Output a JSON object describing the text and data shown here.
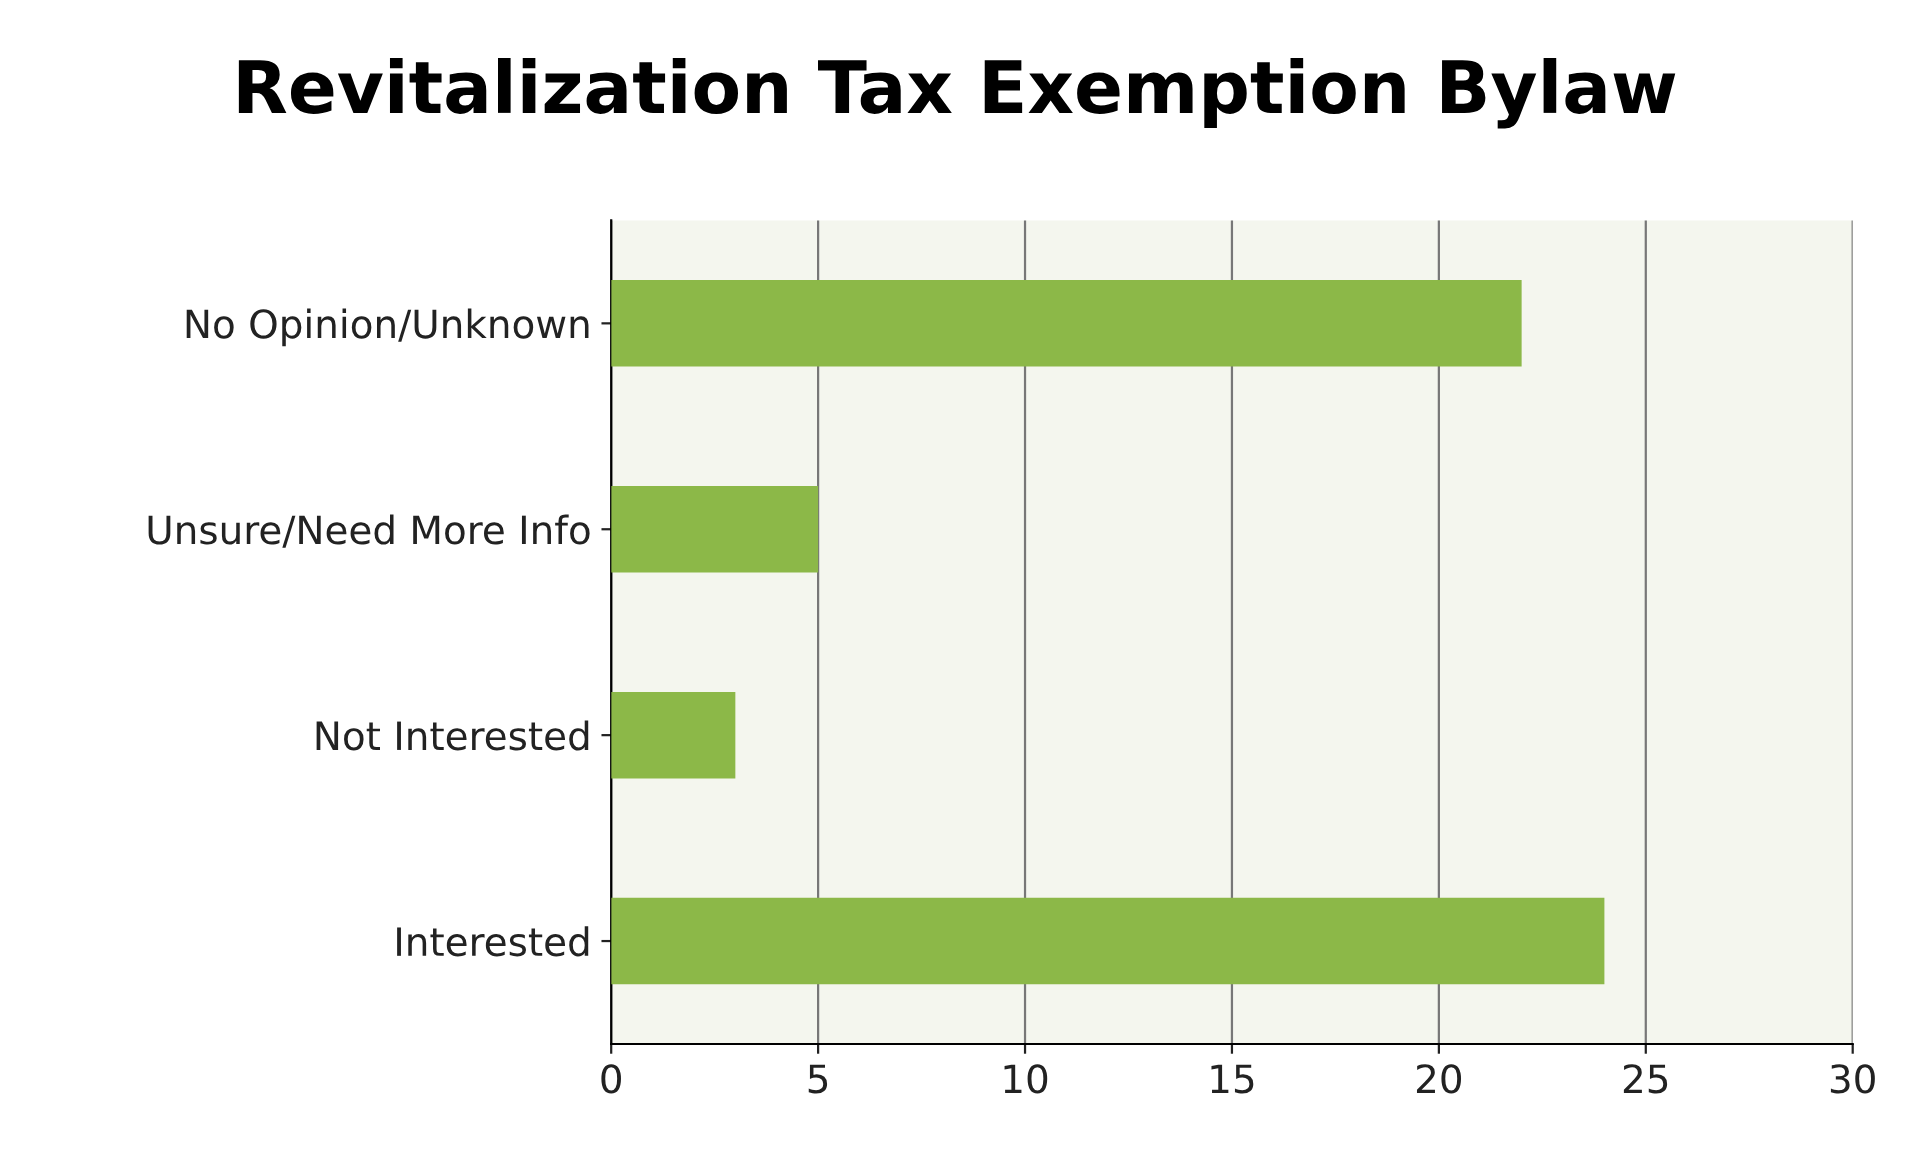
{
  "chart_data": {
    "type": "bar",
    "orientation": "horizontal",
    "title": "Revitalization Tax Exemption Bylaw",
    "categories": [
      "No Opinion/Unknown",
      "Unsure/Need More Info",
      "Not Interested",
      "Interested"
    ],
    "values": [
      22,
      5,
      3,
      24
    ],
    "color": "#8cb848",
    "xlim": [
      0,
      30
    ],
    "xticks": [
      0,
      5,
      10,
      15,
      20,
      25,
      30
    ],
    "grid": "x"
  }
}
